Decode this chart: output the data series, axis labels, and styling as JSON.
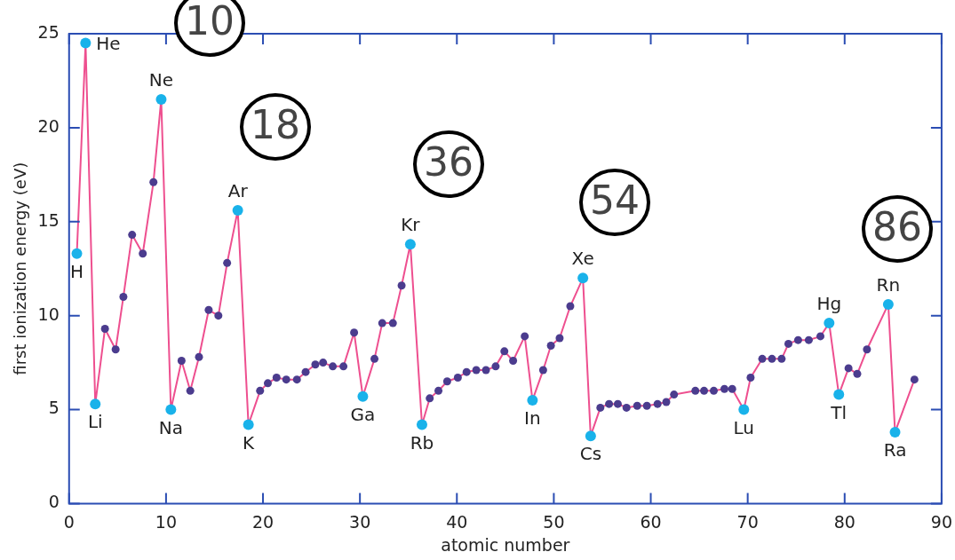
{
  "chart_data": {
    "type": "line",
    "xlabel": "atomic number",
    "ylabel": "first ionization energy (eV)",
    "xlim": [
      0,
      90
    ],
    "xticks": [
      0,
      10,
      20,
      30,
      40,
      50,
      60,
      70,
      80,
      90
    ],
    "ylim": [
      0,
      25
    ],
    "yticks": [
      0,
      5,
      10,
      15,
      20,
      25
    ],
    "grid": false,
    "legend": false,
    "marker": "circle",
    "line_style": "solid",
    "series": [
      {
        "color": "#ee4f8f",
        "x": [
          0.8,
          1.7,
          2.7,
          3.7,
          4.8,
          5.6,
          6.5,
          7.6,
          8.7,
          9.5,
          10.5,
          11.6,
          12.5,
          13.4,
          14.4,
          15.4,
          16.3,
          17.4,
          18.5,
          19.7,
          20.5,
          21.4,
          22.4,
          23.5,
          24.4,
          25.4,
          26.2,
          27.2,
          28.3,
          29.4,
          30.3,
          31.5,
          32.3,
          33.4,
          34.3,
          35.2,
          36.4,
          37.2,
          38.1,
          39.0,
          40.1,
          41.0,
          42.0,
          43.0,
          44.0,
          44.9,
          45.8,
          47.0,
          47.8,
          48.9,
          49.7,
          50.6,
          51.7,
          53.0,
          53.8,
          54.8,
          55.7,
          56.6,
          57.5,
          58.6,
          59.6,
          60.7,
          61.6,
          62.4,
          64.6,
          65.5,
          66.5,
          67.6,
          68.4,
          69.6,
          70.3,
          71.5,
          72.5,
          73.5,
          74.2,
          75.2,
          76.3,
          77.5,
          78.4,
          79.4,
          80.4,
          81.3,
          82.3,
          84.5,
          85.2,
          87.2
        ],
        "values": [
          13.3,
          24.5,
          5.3,
          9.3,
          8.2,
          11.0,
          14.3,
          13.3,
          17.1,
          21.5,
          5.0,
          7.6,
          6.0,
          7.8,
          10.3,
          10.0,
          12.8,
          15.6,
          4.2,
          6.0,
          6.4,
          6.7,
          6.6,
          6.6,
          7.0,
          7.4,
          7.5,
          7.3,
          7.3,
          9.1,
          5.7,
          7.7,
          9.6,
          9.6,
          11.6,
          13.8,
          4.2,
          5.6,
          6.0,
          6.5,
          6.7,
          7.0,
          7.1,
          7.1,
          7.3,
          8.1,
          7.6,
          8.9,
          5.5,
          7.1,
          8.4,
          8.8,
          10.5,
          12.0,
          3.6,
          5.1,
          5.3,
          5.3,
          5.1,
          5.2,
          5.2,
          5.3,
          5.4,
          5.8,
          6.0,
          6.0,
          6.0,
          6.1,
          6.1,
          5.0,
          6.7,
          7.7,
          7.7,
          7.7,
          8.5,
          8.7,
          8.7,
          8.9,
          9.6,
          5.8,
          7.2,
          6.9,
          8.2,
          10.6,
          3.8,
          6.6
        ],
        "colors": [
          "#19b2ea",
          "#19b2ea",
          "#19b2ea",
          "#4b3c8e",
          "#4b3c8e",
          "#4b3c8e",
          "#4b3c8e",
          "#4b3c8e",
          "#4b3c8e",
          "#19b2ea",
          "#19b2ea",
          "#4b3c8e",
          "#4b3c8e",
          "#4b3c8e",
          "#4b3c8e",
          "#4b3c8e",
          "#4b3c8e",
          "#19b2ea",
          "#19b2ea",
          "#4b3c8e",
          "#4b3c8e",
          "#4b3c8e",
          "#4b3c8e",
          "#4b3c8e",
          "#4b3c8e",
          "#4b3c8e",
          "#4b3c8e",
          "#4b3c8e",
          "#4b3c8e",
          "#4b3c8e",
          "#19b2ea",
          "#4b3c8e",
          "#4b3c8e",
          "#4b3c8e",
          "#4b3c8e",
          "#19b2ea",
          "#19b2ea",
          "#4b3c8e",
          "#4b3c8e",
          "#4b3c8e",
          "#4b3c8e",
          "#4b3c8e",
          "#4b3c8e",
          "#4b3c8e",
          "#4b3c8e",
          "#4b3c8e",
          "#4b3c8e",
          "#4b3c8e",
          "#19b2ea",
          "#4b3c8e",
          "#4b3c8e",
          "#4b3c8e",
          "#4b3c8e",
          "#19b2ea",
          "#19b2ea",
          "#4b3c8e",
          "#4b3c8e",
          "#4b3c8e",
          "#4b3c8e",
          "#4b3c8e",
          "#4b3c8e",
          "#4b3c8e",
          "#4b3c8e",
          "#4b3c8e",
          "#4b3c8e",
          "#4b3c8e",
          "#4b3c8e",
          "#4b3c8e",
          "#4b3c8e",
          "#19b2ea",
          "#4b3c8e",
          "#4b3c8e",
          "#4b3c8e",
          "#4b3c8e",
          "#4b3c8e",
          "#4b3c8e",
          "#4b3c8e",
          "#4b3c8e",
          "#19b2ea",
          "#19b2ea",
          "#4b3c8e",
          "#4b3c8e",
          "#4b3c8e",
          "#19b2ea",
          "#19b2ea",
          "#4b3c8e"
        ]
      }
    ],
    "annotations": [
      {
        "text": "H",
        "x": 0.8,
        "y": 13.3
      },
      {
        "text": "He",
        "x": 1.7,
        "y": 24.5
      },
      {
        "text": "Li",
        "x": 2.7,
        "y": 5.3
      },
      {
        "text": "Ne",
        "x": 9.5,
        "y": 21.5
      },
      {
        "text": "Na",
        "x": 10.5,
        "y": 5.0
      },
      {
        "text": "Ar",
        "x": 17.4,
        "y": 15.6
      },
      {
        "text": "K",
        "x": 18.5,
        "y": 4.2
      },
      {
        "text": "Ga",
        "x": 30.3,
        "y": 5.7
      },
      {
        "text": "Kr",
        "x": 35.2,
        "y": 13.8
      },
      {
        "text": "Rb",
        "x": 36.4,
        "y": 4.2
      },
      {
        "text": "In",
        "x": 47.8,
        "y": 5.5
      },
      {
        "text": "Xe",
        "x": 53.0,
        "y": 12.0
      },
      {
        "text": "Cs",
        "x": 53.8,
        "y": 3.6
      },
      {
        "text": "Lu",
        "x": 69.6,
        "y": 5.0
      },
      {
        "text": "Hg",
        "x": 78.4,
        "y": 9.6
      },
      {
        "text": "Tl",
        "x": 79.4,
        "y": 5.8
      },
      {
        "text": "Rn",
        "x": 84.5,
        "y": 10.6
      },
      {
        "text": "Ra",
        "x": 85.2,
        "y": 3.8
      },
      "10",
      "18",
      "36",
      "54",
      "86"
    ]
  }
}
